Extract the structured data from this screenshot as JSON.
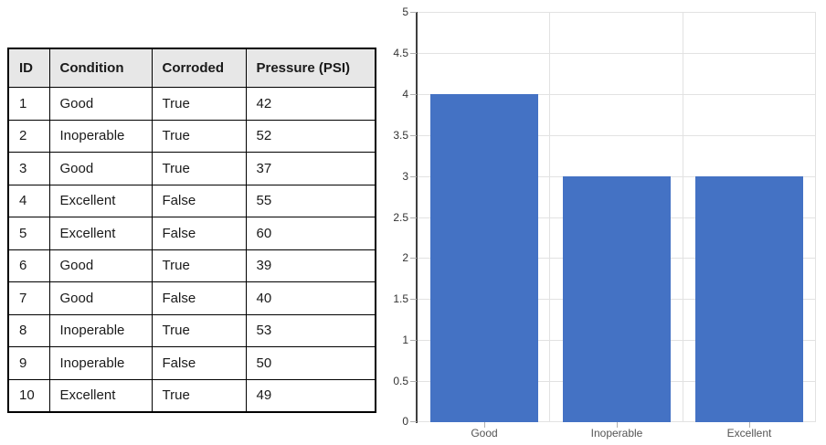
{
  "table": {
    "headers": [
      "ID",
      "Condition",
      "Corroded",
      "Pressure (PSI)"
    ],
    "rows": [
      [
        "1",
        "Good",
        "True",
        "42"
      ],
      [
        "2",
        "Inoperable",
        "True",
        "52"
      ],
      [
        "3",
        "Good",
        "True",
        "37"
      ],
      [
        "4",
        "Excellent",
        "False",
        "55"
      ],
      [
        "5",
        "Excellent",
        "False",
        "60"
      ],
      [
        "6",
        "Good",
        "True",
        "39"
      ],
      [
        "7",
        "Good",
        "False",
        "40"
      ],
      [
        "8",
        "Inoperable",
        "True",
        "53"
      ],
      [
        "9",
        "Inoperable",
        "False",
        "50"
      ],
      [
        "10",
        "Excellent",
        "True",
        "49"
      ]
    ]
  },
  "chart_data": {
    "type": "bar",
    "title": "",
    "xlabel": "",
    "ylabel": "",
    "categories": [
      "Good",
      "Inoperable",
      "Excellent"
    ],
    "values": [
      4,
      3,
      3
    ],
    "ylim": [
      0,
      5
    ],
    "yticks": [
      0,
      0.5,
      1,
      1.5,
      2,
      2.5,
      3,
      3.5,
      4,
      4.5,
      5
    ],
    "ytick_labels": [
      "0",
      "0.5",
      "1",
      "1.5",
      "2",
      "2.5",
      "3",
      "3.5",
      "4",
      "4.5",
      "5"
    ],
    "grid": true,
    "legend": "none",
    "bar_color": "#4472C4"
  },
  "colors": {
    "bar": "#4472C4",
    "gridline": "#e2e2e2",
    "axis": "#3f3f3f",
    "tick": "#b0b0b0",
    "table_border": "#000000",
    "header_bg": "#e7e7e7"
  }
}
